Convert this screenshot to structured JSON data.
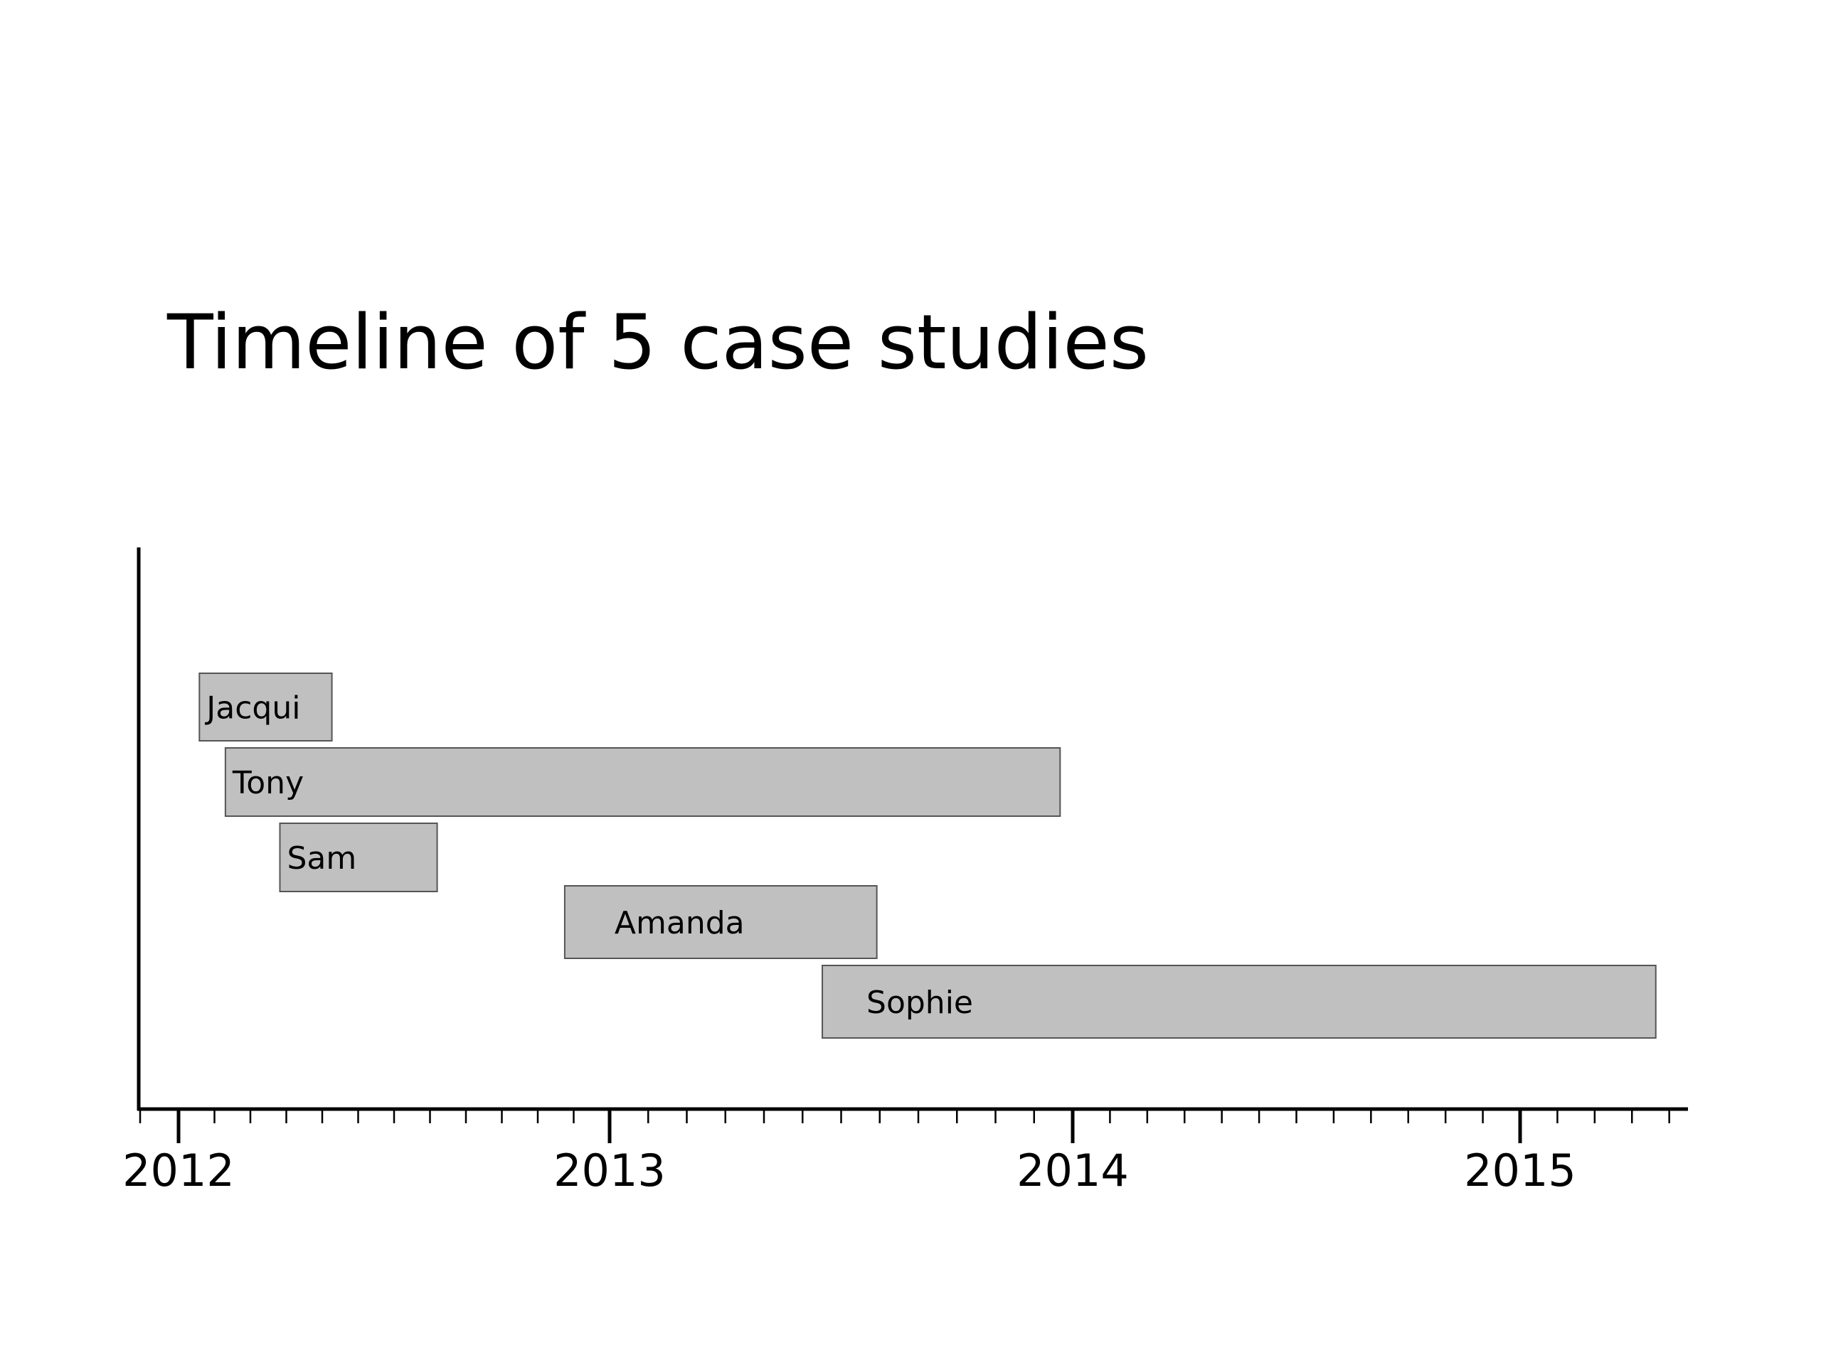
{
  "chart_data": {
    "type": "bar",
    "orientation": "horizontal",
    "title": "Timeline of 5 case studies",
    "xlabel": "",
    "ylabel": "",
    "x_ticks": [
      "2012",
      "2013",
      "2014",
      "2015"
    ],
    "xlim": [
      "2011-11-27",
      "2015-05-01"
    ],
    "grid": false,
    "legend": "none",
    "bar_color": "#c0c0c0",
    "bars": [
      {
        "label": "Jacqui",
        "start": "2012-01-15",
        "end": "2012-05-01"
      },
      {
        "label": "Tony",
        "start": "2012-02-05",
        "end": "2013-12-10"
      },
      {
        "label": "Sam",
        "start": "2012-03-20",
        "end": "2012-07-25"
      },
      {
        "label": "Amanda",
        "start": "2012-11-05",
        "end": "2013-07-15"
      },
      {
        "label": "Sophie",
        "start": "2013-06-01",
        "end": "2015-04-05"
      }
    ]
  }
}
